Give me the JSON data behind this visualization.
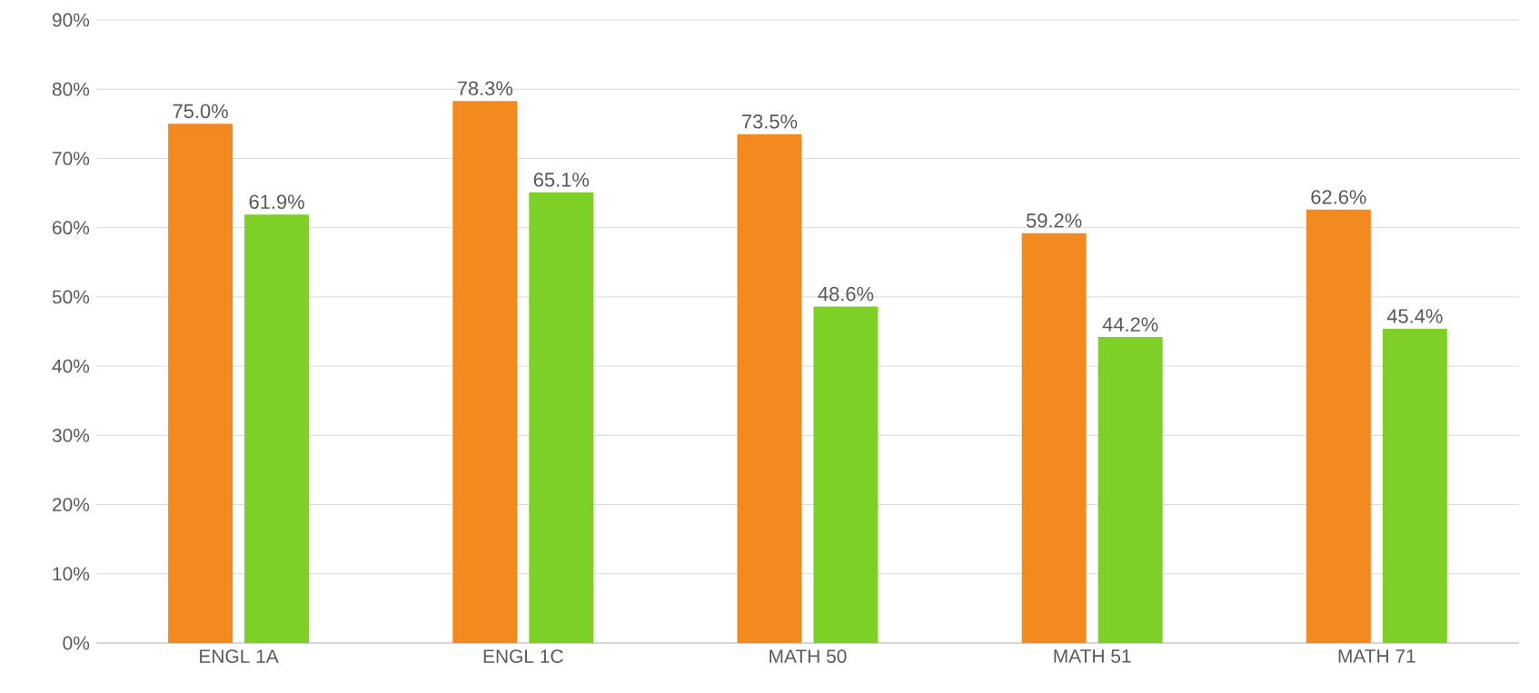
{
  "chart_data": {
    "type": "bar",
    "categories": [
      "ENGL 1A",
      "ENGL 1C",
      "MATH 50",
      "MATH 51",
      "MATH 71"
    ],
    "series": [
      {
        "color": "#f28a1f",
        "values": [
          75.0,
          78.3,
          73.5,
          59.2,
          62.6
        ],
        "value_labels": [
          "75.0%",
          "78.3%",
          "73.5%",
          "59.2%",
          "62.6%"
        ]
      },
      {
        "color": "#7ed026",
        "values": [
          61.9,
          65.1,
          48.6,
          44.2,
          45.4
        ],
        "value_labels": [
          "61.9%",
          "65.1%",
          "48.6%",
          "44.2%",
          "45.4%"
        ]
      }
    ],
    "ylim": [
      0,
      90
    ],
    "yticks": [
      {
        "value": 0,
        "label": "0%"
      },
      {
        "value": 10,
        "label": "10%"
      },
      {
        "value": 20,
        "label": "20%"
      },
      {
        "value": 30,
        "label": "30%"
      },
      {
        "value": 40,
        "label": "40%"
      },
      {
        "value": 50,
        "label": "50%"
      },
      {
        "value": 60,
        "label": "60%"
      },
      {
        "value": 70,
        "label": "70%"
      },
      {
        "value": 80,
        "label": "80%"
      },
      {
        "value": 90,
        "label": "90%"
      }
    ],
    "grid": "y"
  }
}
